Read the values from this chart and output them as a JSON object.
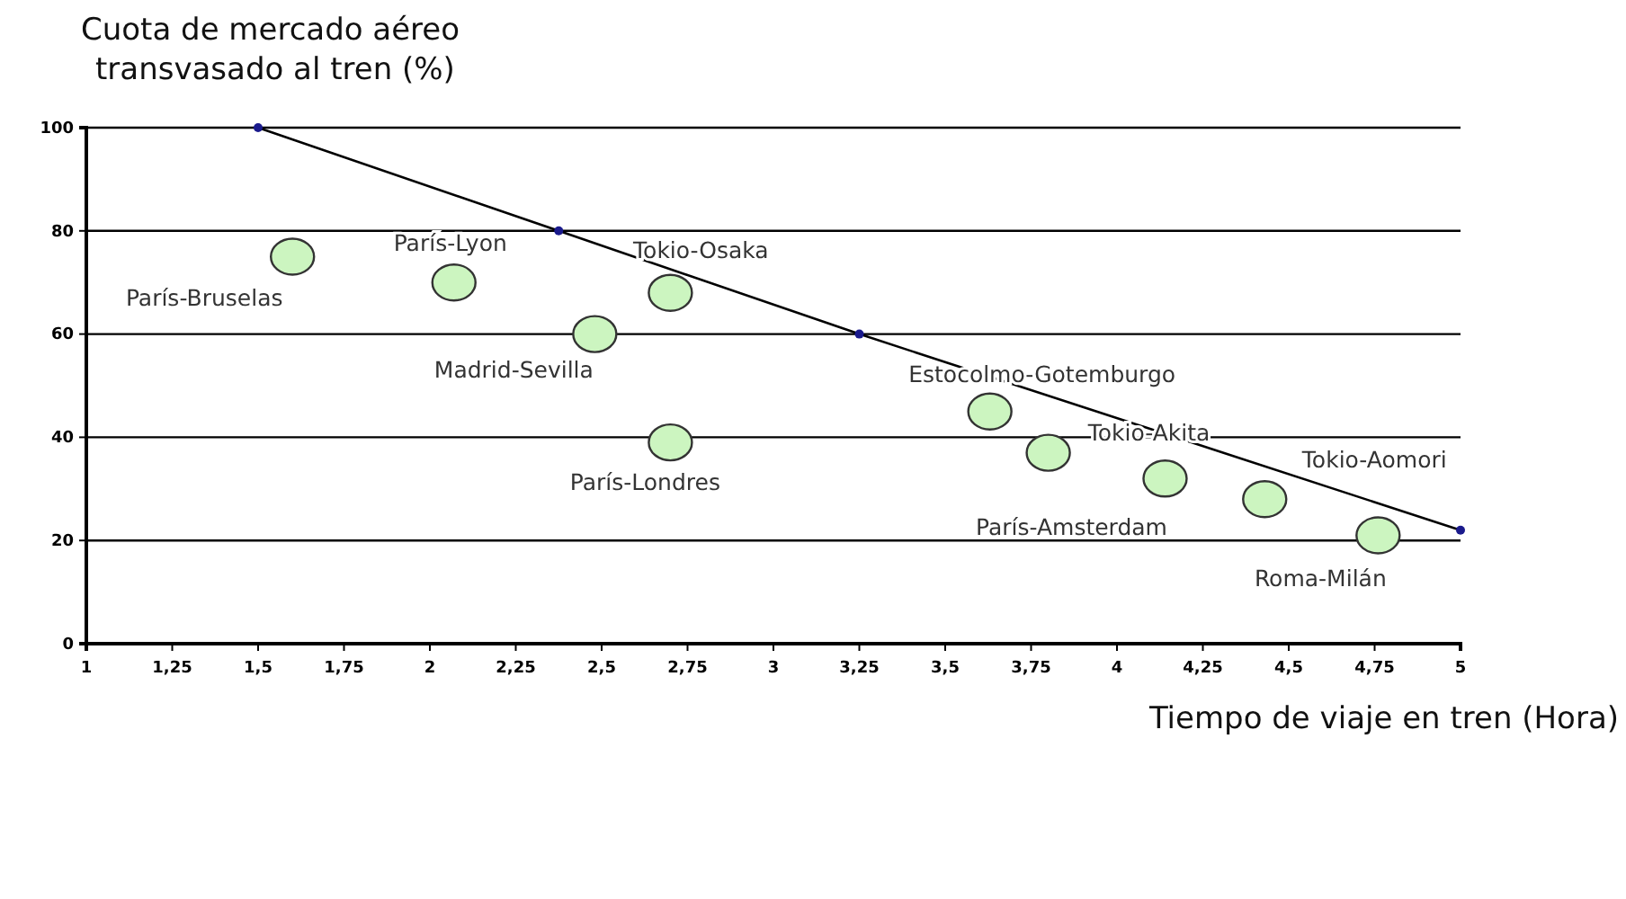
{
  "chart_data": {
    "type": "scatter",
    "ylabel": "Cuota de mercado aéreo\ntransvasado al tren (%)",
    "xlabel": "Tiempo de viaje en tren (Hora)",
    "xlim": [
      1,
      5
    ],
    "ylim": [
      0,
      100
    ],
    "xticks": [
      1,
      {
        "value": 1.25,
        "label": "1,25"
      },
      {
        "value": 1.5,
        "label": "1,5"
      },
      {
        "value": 1.75,
        "label": "1,75"
      },
      2,
      {
        "value": 2.25,
        "label": "2,25"
      },
      {
        "value": 2.5,
        "label": "2,5"
      },
      {
        "value": 2.75,
        "label": "2,75"
      },
      3,
      {
        "value": 3.25,
        "label": "3,25"
      },
      {
        "value": 3.5,
        "label": "3,5"
      },
      {
        "value": 3.75,
        "label": "3,75"
      },
      4,
      {
        "value": 4.25,
        "label": "4,25"
      },
      {
        "value": 4.5,
        "label": "4,5"
      },
      {
        "value": 4.75,
        "label": "4,75"
      },
      5
    ],
    "yticks": [
      0,
      20,
      40,
      60,
      80,
      100
    ],
    "grid": "y",
    "series": [
      {
        "color": "#ccf5c0",
        "x": [
          1.6,
          2.07,
          2.7,
          2.48,
          2.7,
          3.63,
          3.8,
          4.14,
          4.43,
          4.76
        ],
        "values": [
          75,
          70,
          68,
          60,
          39,
          45,
          37,
          32,
          28,
          21
        ]
      },
      {
        "type": "line",
        "color": "#000000",
        "marker": "circle",
        "x": [
          1.5,
          2.375,
          3.25,
          5
        ],
        "values": [
          100,
          80,
          60,
          22
        ]
      }
    ],
    "annotations": [
      {
        "text": "París-Bruselas",
        "x": 1.6,
        "y": 75
      },
      {
        "text": "París-Lyon",
        "x": 2.07,
        "y": 70
      },
      {
        "text": "Tokio-Osaka",
        "x": 2.7,
        "y": 68
      },
      {
        "text": "Madrid-Sevilla",
        "x": 2.48,
        "y": 60
      },
      {
        "text": "París-Londres",
        "x": 2.7,
        "y": 39
      },
      {
        "text": "Estocolmo-Gotemburgo",
        "x": 3.63,
        "y": 45
      },
      {
        "text": "Tokio-Akita",
        "x": 3.8,
        "y": 37
      },
      {
        "text": "París-Amsterdam",
        "x": 4.14,
        "y": 32
      },
      {
        "text": "Tokio-Aomori",
        "x": 4.43,
        "y": 28
      },
      {
        "text": "Roma-Milán",
        "x": 4.76,
        "y": 21
      }
    ]
  }
}
